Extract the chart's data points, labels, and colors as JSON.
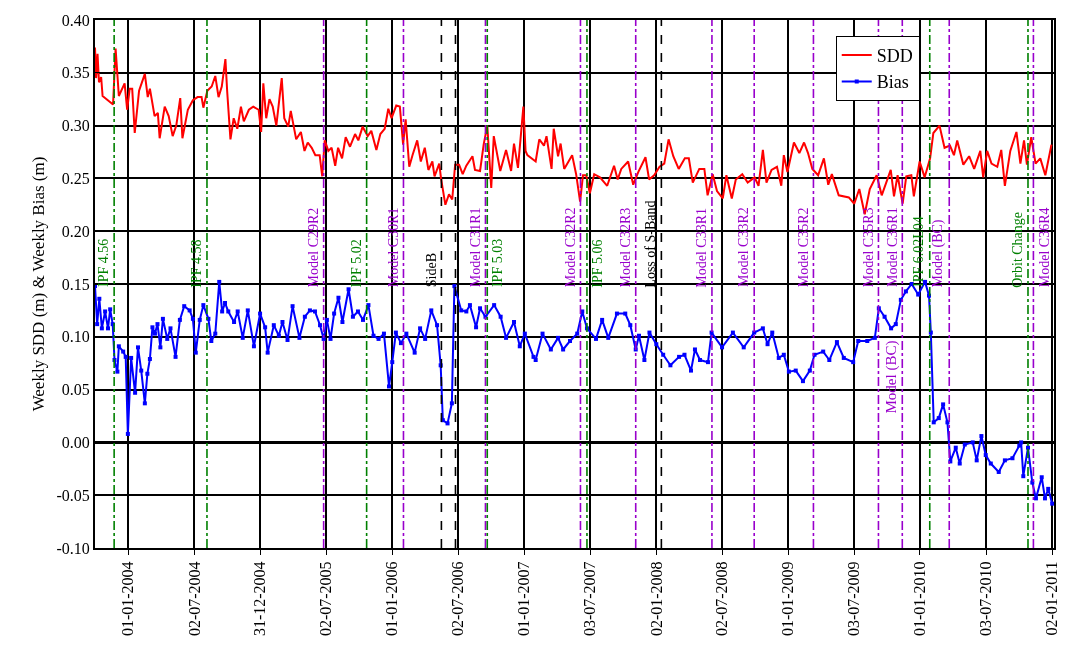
{
  "chart_data": {
    "type": "line",
    "ylabel": "Weekly SDD (m) & Weekly Bias (m)",
    "xlim": [
      "2003-10-01",
      "2011-01-07"
    ],
    "xticks": [
      {
        "value": "2004-01-01",
        "label": "01-01-2004"
      },
      {
        "value": "2004-07-02",
        "label": "02-07-2004"
      },
      {
        "value": "2004-12-31",
        "label": "31-12-2004"
      },
      {
        "value": "2005-07-02",
        "label": "02-07-2005"
      },
      {
        "value": "2006-01-01",
        "label": "01-01-2006"
      },
      {
        "value": "2006-07-02",
        "label": "02-07-2006"
      },
      {
        "value": "2007-01-01",
        "label": "01-01-2007"
      },
      {
        "value": "2007-07-03",
        "label": "03-07-2007"
      },
      {
        "value": "2008-01-02",
        "label": "02-01-2008"
      },
      {
        "value": "2008-07-02",
        "label": "02-07-2008"
      },
      {
        "value": "2009-01-01",
        "label": "01-01-2009"
      },
      {
        "value": "2009-07-03",
        "label": "03-07-2009"
      },
      {
        "value": "2010-01-01",
        "label": "01-01-2010"
      },
      {
        "value": "2010-07-03",
        "label": "03-07-2010"
      },
      {
        "value": "2011-01-02",
        "label": "02-01-2011"
      }
    ],
    "ylim": [
      -0.1,
      0.4
    ],
    "yticks": [
      {
        "value": -0.1,
        "label": "-0.10"
      },
      {
        "value": -0.05,
        "label": "-0.05"
      },
      {
        "value": 0,
        "label": "0.00"
      },
      {
        "value": 0.05,
        "label": "0.05"
      },
      {
        "value": 0.1,
        "label": "0.10"
      },
      {
        "value": 0.15,
        "label": "0.15"
      },
      {
        "value": 0.2,
        "label": "0.20"
      },
      {
        "value": 0.25,
        "label": "0.25"
      },
      {
        "value": 0.3,
        "label": "0.30"
      },
      {
        "value": 0.35,
        "label": "0.35"
      },
      {
        "value": 0.4,
        "label": "0.40"
      }
    ],
    "grid": true,
    "legend": "top right",
    "series": [
      {
        "name": "SDD",
        "color": "#ff0000",
        "marker": "none",
        "line_style": "solid",
        "x": [
          "2003-10-01",
          "2003-10-04",
          "2003-10-08",
          "2003-10-12",
          "2003-10-18",
          "2003-10-22",
          "2003-11-20",
          "2003-11-27",
          "2003-12-06",
          "2003-12-22",
          "2003-12-29",
          "2004-01-05",
          "2004-01-12",
          "2004-01-19",
          "2004-01-31",
          "2004-02-16",
          "2004-02-24",
          "2004-03-01",
          "2004-03-14",
          "2004-03-23",
          "2004-03-28",
          "2004-04-11",
          "2004-04-22",
          "2004-05-03",
          "2004-05-13",
          "2004-05-24",
          "2004-05-30",
          "2004-06-14",
          "2004-06-28",
          "2004-07-11",
          "2004-07-22",
          "2004-07-27",
          "2004-08-07",
          "2004-08-19",
          "2004-08-29",
          "2004-09-07",
          "2004-09-16",
          "2004-09-26",
          "2004-10-01",
          "2004-10-10",
          "2004-10-19",
          "2004-10-29",
          "2004-11-08",
          "2004-11-16",
          "2004-11-30",
          "2004-12-12",
          "2004-12-27",
          "2005-01-03",
          "2005-01-09",
          "2005-01-17",
          "2005-01-26",
          "2005-02-04",
          "2005-02-14",
          "2005-03-01",
          "2005-03-08",
          "2005-03-19",
          "2005-03-26",
          "2005-04-10",
          "2005-04-23",
          "2005-05-03",
          "2005-05-12",
          "2005-05-23",
          "2005-06-02",
          "2005-06-14",
          "2005-06-21",
          "2005-06-28",
          "2005-07-08",
          "2005-07-17",
          "2005-07-27",
          "2005-08-04",
          "2005-08-15",
          "2005-08-25",
          "2005-09-06",
          "2005-09-20",
          "2005-09-29",
          "2005-10-11",
          "2005-10-25",
          "2005-11-04",
          "2005-11-18",
          "2005-11-29",
          "2005-12-11",
          "2005-12-21",
          "2005-12-30",
          "2006-01-12",
          "2006-01-22",
          "2006-01-31",
          "2006-02-07",
          "2006-02-17",
          "2006-02-26",
          "2006-03-11",
          "2006-03-21",
          "2006-04-01",
          "2006-04-11",
          "2006-04-22",
          "2006-04-28",
          "2006-05-11",
          "2006-05-16",
          "2006-05-28",
          "2006-06-07",
          "2006-06-16",
          "2006-06-24",
          "2006-07-05",
          "2006-07-15",
          "2006-07-25",
          "2006-08-11",
          "2006-08-18",
          "2006-09-01",
          "2006-09-11",
          "2006-09-21",
          "2006-10-02",
          "2006-10-09",
          "2006-10-27",
          "2006-11-12",
          "2006-11-26",
          "2006-12-04",
          "2006-12-15",
          "2006-12-30",
          "2007-01-05",
          "2007-01-10",
          "2007-02-02",
          "2007-02-12",
          "2007-02-25",
          "2007-03-04",
          "2007-03-18",
          "2007-03-24",
          "2007-04-05",
          "2007-04-12",
          "2007-04-22",
          "2007-05-14",
          "2007-05-25",
          "2007-06-05",
          "2007-06-13",
          "2007-06-22",
          "2007-07-02",
          "2007-07-14",
          "2007-07-30",
          "2007-08-19",
          "2007-09-07",
          "2007-09-17",
          "2007-09-27",
          "2007-10-16",
          "2007-10-30",
          "2007-11-13",
          "2007-12-03",
          "2007-12-13",
          "2007-12-27",
          "2008-01-11",
          "2008-01-24",
          "2008-02-05",
          "2008-02-18",
          "2008-03-04",
          "2008-03-21",
          "2008-04-01",
          "2008-04-12",
          "2008-04-30",
          "2008-05-14",
          "2008-05-23",
          "2008-06-06",
          "2008-06-18",
          "2008-07-04",
          "2008-07-14",
          "2008-07-29",
          "2008-08-09",
          "2008-08-27",
          "2008-09-11",
          "2008-09-30",
          "2008-10-11",
          "2008-10-23",
          "2008-11-02",
          "2008-11-16",
          "2008-12-01",
          "2008-12-13",
          "2008-12-20",
          "2008-12-30",
          "2009-01-17",
          "2009-02-01",
          "2009-02-14",
          "2009-02-25",
          "2009-03-09",
          "2009-03-25",
          "2009-04-10",
          "2009-04-22",
          "2009-05-02",
          "2009-05-21",
          "2009-06-18",
          "2009-07-03",
          "2009-07-17",
          "2009-08-01",
          "2009-08-15",
          "2009-09-03",
          "2009-09-17",
          "2009-10-12",
          "2009-10-21",
          "2009-10-31",
          "2009-11-14",
          "2009-11-24",
          "2009-12-08",
          "2009-12-15",
          "2009-12-31",
          "2010-01-14",
          "2010-01-29",
          "2010-02-07",
          "2010-02-24",
          "2010-03-10",
          "2010-03-25",
          "2010-04-05",
          "2010-04-14",
          "2010-05-01",
          "2010-05-17",
          "2010-05-31",
          "2010-06-17",
          "2010-06-25",
          "2010-07-06",
          "2010-07-18",
          "2010-08-03",
          "2010-08-14",
          "2010-08-24",
          "2010-09-08",
          "2010-09-25",
          "2010-10-06",
          "2010-10-16",
          "2010-10-24",
          "2010-11-05",
          "2010-11-17",
          "2010-11-30",
          "2010-12-14",
          "2010-12-31"
        ],
        "values": [
          0.374,
          0.345,
          0.368,
          0.341,
          0.346,
          0.328,
          0.32,
          0.373,
          0.328,
          0.34,
          0.315,
          0.335,
          0.335,
          0.293,
          0.333,
          0.349,
          0.327,
          0.335,
          0.309,
          0.312,
          0.288,
          0.318,
          0.309,
          0.29,
          0.3,
          0.326,
          0.288,
          0.315,
          0.324,
          0.327,
          0.327,
          0.317,
          0.333,
          0.337,
          0.347,
          0.327,
          0.337,
          0.363,
          0.332,
          0.287,
          0.307,
          0.297,
          0.318,
          0.304,
          0.315,
          0.318,
          0.315,
          0.294,
          0.34,
          0.307,
          0.325,
          0.318,
          0.3,
          0.345,
          0.307,
          0.299,
          0.314,
          0.287,
          0.294,
          0.276,
          0.284,
          0.279,
          0.272,
          0.272,
          0.252,
          0.286,
          0.276,
          0.279,
          0.262,
          0.279,
          0.269,
          0.289,
          0.28,
          0.292,
          0.286,
          0.299,
          0.29,
          0.295,
          0.277,
          0.292,
          0.297,
          0.316,
          0.307,
          0.319,
          0.318,
          0.282,
          0.306,
          0.261,
          0.272,
          0.286,
          0.266,
          0.279,
          0.258,
          0.266,
          0.252,
          0.264,
          0.25,
          0.225,
          0.235,
          0.23,
          0.263,
          0.263,
          0.254,
          0.262,
          0.271,
          0.258,
          0.257,
          0.282,
          0.3,
          0.241,
          0.29,
          0.257,
          0.277,
          0.257,
          0.283,
          0.26,
          0.318,
          0.276,
          0.272,
          0.266,
          0.287,
          0.281,
          0.29,
          0.259,
          0.297,
          0.271,
          0.283,
          0.259,
          0.272,
          0.254,
          0.228,
          0.253,
          0.253,
          0.236,
          0.254,
          0.251,
          0.243,
          0.262,
          0.249,
          0.259,
          0.266,
          0.244,
          0.256,
          0.27,
          0.249,
          0.253,
          0.261,
          0.264,
          0.287,
          0.271,
          0.259,
          0.269,
          0.269,
          0.246,
          0.259,
          0.259,
          0.234,
          0.254,
          0.238,
          0.231,
          0.253,
          0.231,
          0.249,
          0.254,
          0.246,
          0.251,
          0.243,
          0.277,
          0.246,
          0.258,
          0.261,
          0.243,
          0.272,
          0.256,
          0.284,
          0.274,
          0.284,
          0.274,
          0.259,
          0.253,
          0.269,
          0.244,
          0.254,
          0.234,
          0.232,
          0.226,
          0.24,
          0.216,
          0.24,
          0.253,
          0.234,
          0.258,
          0.233,
          0.253,
          0.226,
          0.252,
          0.253,
          0.233,
          0.266,
          0.251,
          0.269,
          0.293,
          0.3,
          0.279,
          0.281,
          0.272,
          0.286,
          0.263,
          0.271,
          0.259,
          0.276,
          0.251,
          0.276,
          0.264,
          0.261,
          0.277,
          0.243,
          0.276,
          0.294,
          0.264,
          0.286,
          0.263,
          0.289,
          0.264,
          0.269,
          0.253,
          0.282
        ]
      },
      {
        "name": "Bias",
        "color": "#0000ff",
        "marker": "square",
        "line_style": "solid",
        "x": [
          "2003-10-01",
          "2003-10-07",
          "2003-10-13",
          "2003-10-20",
          "2003-10-29",
          "2003-11-06",
          "2003-11-12",
          "2003-11-19",
          "2003-11-24",
          "2003-12-02",
          "2003-12-06",
          "2003-12-18",
          "2003-12-25",
          "2003-12-31",
          "2004-01-09",
          "2004-01-20",
          "2004-01-28",
          "2004-02-06",
          "2004-02-16",
          "2004-02-23",
          "2004-03-01",
          "2004-03-08",
          "2004-03-15",
          "2004-03-22",
          "2004-03-30",
          "2004-04-06",
          "2004-04-18",
          "2004-04-27",
          "2004-05-11",
          "2004-05-23",
          "2004-06-04",
          "2004-06-19",
          "2004-06-28",
          "2004-07-06",
          "2004-07-17",
          "2004-07-27",
          "2004-08-10",
          "2004-08-18",
          "2004-08-29",
          "2004-09-09",
          "2004-09-17",
          "2004-09-25",
          "2004-10-04",
          "2004-10-20",
          "2004-10-30",
          "2004-11-13",
          "2004-11-27",
          "2004-12-14",
          "2004-12-31",
          "2005-01-14",
          "2005-01-21",
          "2005-02-07",
          "2005-02-21",
          "2005-03-03",
          "2005-03-17",
          "2005-03-31",
          "2005-04-19",
          "2005-05-04",
          "2005-05-18",
          "2005-06-01",
          "2005-06-15",
          "2005-06-25",
          "2005-07-04",
          "2005-07-14",
          "2005-07-24",
          "2005-08-05",
          "2005-08-16",
          "2005-09-02",
          "2005-09-14",
          "2005-09-28",
          "2005-10-12",
          "2005-10-27",
          "2005-11-10",
          "2005-11-24",
          "2005-12-09",
          "2005-12-23",
          "2006-01-01",
          "2006-01-11",
          "2006-01-25",
          "2006-02-09",
          "2006-03-04",
          "2006-03-19",
          "2006-04-02",
          "2006-04-19",
          "2006-05-05",
          "2006-05-15",
          "2006-05-21",
          "2006-06-03",
          "2006-06-15",
          "2006-06-22",
          "2006-07-11",
          "2006-07-25",
          "2006-08-04",
          "2006-08-21",
          "2006-09-01",
          "2006-09-16",
          "2006-10-10",
          "2006-10-28",
          "2006-11-12",
          "2006-12-04",
          "2006-12-20",
          "2007-01-03",
          "2007-01-27",
          "2007-02-02",
          "2007-02-21",
          "2007-03-16",
          "2007-04-05",
          "2007-04-19",
          "2007-05-08",
          "2007-05-28",
          "2007-06-11",
          "2007-06-24",
          "2007-07-19",
          "2007-08-05",
          "2007-08-22",
          "2007-09-15",
          "2007-10-08",
          "2007-10-22",
          "2007-11-06",
          "2007-11-15",
          "2007-11-30",
          "2007-12-14",
          "2008-01-02",
          "2008-01-21",
          "2008-02-10",
          "2008-03-05",
          "2008-03-20",
          "2008-04-07",
          "2008-04-18",
          "2008-05-02",
          "2008-05-24",
          "2008-06-03",
          "2008-07-02",
          "2008-08-01",
          "2008-08-31",
          "2008-09-29",
          "2008-10-23",
          "2008-11-05",
          "2008-11-18",
          "2008-12-06",
          "2008-12-20",
          "2009-01-03",
          "2009-01-22",
          "2009-02-11",
          "2009-03-02",
          "2009-03-15",
          "2009-04-08",
          "2009-04-25",
          "2009-05-16",
          "2009-06-04",
          "2009-06-30",
          "2009-07-14",
          "2009-08-08",
          "2009-08-29",
          "2009-09-09",
          "2009-09-25",
          "2009-10-13",
          "2009-10-26",
          "2009-11-09",
          "2009-11-23",
          "2009-12-09",
          "2009-12-27",
          "2010-01-15",
          "2010-01-26",
          "2010-01-31",
          "2010-02-08",
          "2010-02-22",
          "2010-03-06",
          "2010-03-18",
          "2010-03-26",
          "2010-04-10",
          "2010-04-21",
          "2010-05-05",
          "2010-05-27",
          "2010-06-07",
          "2010-06-20",
          "2010-07-02",
          "2010-07-16",
          "2010-08-07",
          "2010-08-24",
          "2010-09-14",
          "2010-10-03",
          "2010-10-08",
          "2010-10-14",
          "2010-10-27",
          "2010-11-08",
          "2010-11-18",
          "2010-12-04",
          "2010-12-13",
          "2010-12-22",
          "2011-01-02"
        ],
        "values": [
          0.148,
          0.112,
          0.136,
          0.108,
          0.124,
          0.108,
          0.126,
          0.112,
          0.078,
          0.067,
          0.091,
          0.086,
          0.081,
          0.008,
          0.08,
          0.047,
          0.09,
          0.068,
          0.037,
          0.065,
          0.079,
          0.109,
          0.103,
          0.112,
          0.09,
          0.117,
          0.098,
          0.108,
          0.081,
          0.116,
          0.129,
          0.125,
          0.117,
          0.085,
          0.116,
          0.13,
          0.117,
          0.096,
          0.103,
          0.152,
          0.124,
          0.132,
          0.124,
          0.114,
          0.124,
          0.099,
          0.125,
          0.091,
          0.122,
          0.109,
          0.085,
          0.111,
          0.101,
          0.114,
          0.097,
          0.129,
          0.099,
          0.119,
          0.125,
          0.124,
          0.111,
          0.098,
          0.116,
          0.098,
          0.122,
          0.137,
          0.114,
          0.145,
          0.119,
          0.124,
          0.116,
          0.13,
          0.101,
          0.098,
          0.103,
          0.053,
          0.076,
          0.104,
          0.094,
          0.103,
          0.085,
          0.108,
          0.098,
          0.125,
          0.111,
          0.073,
          0.021,
          0.018,
          0.037,
          0.148,
          0.125,
          0.124,
          0.13,
          0.109,
          0.127,
          0.119,
          0.13,
          0.119,
          0.099,
          0.114,
          0.091,
          0.103,
          0.081,
          0.078,
          0.103,
          0.088,
          0.099,
          0.088,
          0.096,
          0.103,
          0.124,
          0.108,
          0.098,
          0.116,
          0.099,
          0.122,
          0.122,
          0.111,
          0.088,
          0.101,
          0.078,
          0.104,
          0.093,
          0.083,
          0.073,
          0.081,
          0.083,
          0.068,
          0.088,
          0.078,
          0.076,
          0.104,
          0.09,
          0.104,
          0.09,
          0.104,
          0.108,
          0.093,
          0.104,
          0.08,
          0.083,
          0.067,
          0.068,
          0.058,
          0.068,
          0.083,
          0.086,
          0.078,
          0.095,
          0.08,
          0.076,
          0.096,
          0.096,
          0.099,
          0.127,
          0.119,
          0.108,
          0.112,
          0.135,
          0.143,
          0.15,
          0.14,
          0.152,
          0.139,
          0.104,
          0.019,
          0.023,
          0.036,
          0.019,
          -0.018,
          -0.005,
          -0.02,
          -0.002,
          0.0,
          -0.017,
          0.006,
          -0.012,
          -0.02,
          -0.028,
          -0.017,
          -0.015,
          -0.003,
          0.0,
          -0.032,
          -0.005,
          -0.038,
          -0.053,
          -0.033,
          -0.053,
          -0.044,
          -0.058
        ]
      }
    ],
    "ref_lines": [
      {
        "axis": "x",
        "value": "2003-11-23",
        "label": "IPF 4.56",
        "color": "#008000",
        "line_style": "dotted"
      },
      {
        "axis": "x",
        "value": "2004-08-06",
        "label": "IPF 4.58",
        "color": "#008000",
        "line_style": "dotted"
      },
      {
        "axis": "x",
        "value": "2005-06-25",
        "label": "Model C29R2",
        "color": "#9900cc",
        "line_style": "dotted"
      },
      {
        "axis": "x",
        "value": "2005-10-22",
        "label": "IPF 5.02",
        "color": "#008000",
        "line_style": "dotted"
      },
      {
        "axis": "x",
        "value": "2006-02-01",
        "label": "Model C30R1",
        "color": "#9900cc",
        "line_style": "dotted"
      },
      {
        "axis": "x",
        "value": "2006-05-17",
        "label": "SideB",
        "color": "#000000",
        "line_style": "dashed"
      },
      {
        "axis": "x",
        "value": "2006-06-25",
        "label": null,
        "color": "#000000",
        "line_style": "dashed"
      },
      {
        "axis": "x",
        "value": "2006-09-16",
        "label": "Model C31R1",
        "color": "#9900cc",
        "line_style": "dotted"
      },
      {
        "axis": "x",
        "value": "2006-09-21",
        "label": "IPF 5.03",
        "color": "#008000",
        "line_style": "dotted"
      },
      {
        "axis": "x",
        "value": "2007-06-06",
        "label": "Model C32R2",
        "color": "#9900cc",
        "line_style": "dotted"
      },
      {
        "axis": "x",
        "value": "2007-06-24",
        "label": "IPF 5.06",
        "color": "#008000",
        "line_style": "dotted"
      },
      {
        "axis": "x",
        "value": "2007-11-06",
        "label": "Model C32R3",
        "color": "#9900cc",
        "line_style": "dotted"
      },
      {
        "axis": "x",
        "value": "2008-01-16",
        "label": "Loss of S-Band",
        "color": "#000000",
        "line_style": "dashed"
      },
      {
        "axis": "x",
        "value": "2008-06-04",
        "label": "Model C33R1",
        "color": "#9900cc",
        "line_style": "dotted"
      },
      {
        "axis": "x",
        "value": "2008-09-29",
        "label": "Model C33R2",
        "color": "#9900cc",
        "line_style": "dotted"
      },
      {
        "axis": "x",
        "value": "2009-03-12",
        "label": "Model C35R2",
        "color": "#9900cc",
        "line_style": "dotted"
      },
      {
        "axis": "x",
        "value": "2009-09-08",
        "label": "Model C35R3",
        "color": "#9900cc",
        "line_style": "dotted"
      },
      {
        "axis": "x",
        "value": "2009-11-13",
        "label": "Model C36R1",
        "color": "#9900cc",
        "line_style": "dotted"
      },
      {
        "axis": "x",
        "value": "2010-01-28",
        "label": "IPF 6.02L04",
        "color": "#008000",
        "line_style": "dotted"
      },
      {
        "axis": "x",
        "value": "2010-03-23",
        "label": "Model (BC)",
        "color": "#9900cc",
        "line_style": "dotted"
      },
      {
        "axis": "x",
        "value": "2010-10-27",
        "label": "Orbit Change",
        "color": "#008000",
        "line_style": "dotted"
      },
      {
        "axis": "x",
        "value": "2010-11-11",
        "label": "Model C36R4",
        "color": "#9900cc",
        "line_style": "dotted"
      }
    ],
    "annotations": [
      "Model (BC)"
    ]
  }
}
